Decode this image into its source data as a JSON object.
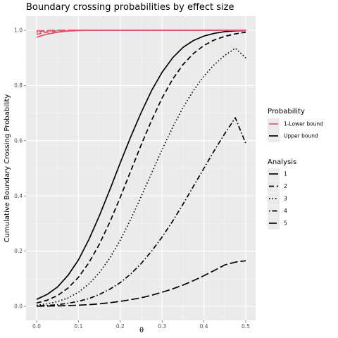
{
  "chart_data": {
    "type": "line",
    "title": "Boundary crossing probabilities by effect size",
    "xlabel": "θ",
    "ylabel": "Cumulative Boundary Crossing Probability",
    "xlim": [
      0,
      0.5
    ],
    "ylim": [
      0,
      1
    ],
    "x_ticks": [
      "0.0",
      "0.1",
      "0.2",
      "0.3",
      "0.4",
      "0.5"
    ],
    "y_ticks": [
      "0.0",
      "0.2",
      "0.4",
      "0.6",
      "0.8",
      "1.0"
    ],
    "grid": true,
    "panel_background": "#ebebeb",
    "legend_position": "right",
    "legend": {
      "probability": {
        "title": "Probability",
        "items": [
          {
            "label": "1-Lower bound",
            "color": "#df536b"
          },
          {
            "label": "Upper bound",
            "color": "#000000"
          }
        ]
      },
      "analysis": {
        "title": "Analysis",
        "items": [
          {
            "label": "1",
            "dash": "solid"
          },
          {
            "label": "2",
            "dash": "dashed"
          },
          {
            "label": "3",
            "dash": "dotted"
          },
          {
            "label": "4",
            "dash": "dotdash"
          },
          {
            "label": "5",
            "dash": "longdash"
          }
        ]
      }
    },
    "x": [
      0,
      0.025,
      0.05,
      0.075,
      0.1,
      0.125,
      0.15,
      0.175,
      0.2,
      0.225,
      0.25,
      0.275,
      0.3,
      0.325,
      0.35,
      0.375,
      0.4,
      0.425,
      0.45,
      0.475,
      0.5
    ],
    "series": [
      {
        "name": "Upper bound",
        "analysis": "1",
        "color": "#000000",
        "dash": "solid",
        "values": [
          0.025,
          0.043,
          0.07,
          0.112,
          0.168,
          0.242,
          0.328,
          0.422,
          0.52,
          0.614,
          0.702,
          0.782,
          0.848,
          0.9,
          0.938,
          0.963,
          0.979,
          0.989,
          0.995,
          0.998,
          0.999
        ]
      },
      {
        "name": "Upper bound",
        "analysis": "2",
        "color": "#000000",
        "dash": "dashed",
        "values": [
          0.012,
          0.022,
          0.039,
          0.066,
          0.105,
          0.158,
          0.225,
          0.305,
          0.395,
          0.49,
          0.585,
          0.674,
          0.755,
          0.822,
          0.876,
          0.916,
          0.945,
          0.965,
          0.978,
          0.987,
          0.993
        ]
      },
      {
        "name": "Upper bound",
        "analysis": "3",
        "color": "#000000",
        "dash": "dotted",
        "values": [
          0.004,
          0.009,
          0.017,
          0.03,
          0.051,
          0.081,
          0.122,
          0.175,
          0.24,
          0.315,
          0.398,
          0.483,
          0.568,
          0.648,
          0.72,
          0.782,
          0.834,
          0.876,
          0.909,
          0.935,
          0.9
        ]
      },
      {
        "name": "Upper bound",
        "analysis": "4",
        "color": "#000000",
        "dash": "dotdash",
        "values": [
          0.002,
          0.003,
          0.006,
          0.011,
          0.018,
          0.028,
          0.043,
          0.062,
          0.086,
          0.117,
          0.155,
          0.2,
          0.251,
          0.308,
          0.37,
          0.435,
          0.5,
          0.565,
          0.626,
          0.683,
          0.59
        ]
      },
      {
        "name": "Upper bound",
        "analysis": "5",
        "color": "#000000",
        "dash": "longdash",
        "values": [
          0.0005,
          0.001,
          0.0015,
          0.0025,
          0.004,
          0.006,
          0.009,
          0.013,
          0.018,
          0.024,
          0.031,
          0.04,
          0.051,
          0.063,
          0.077,
          0.093,
          0.111,
          0.13,
          0.15,
          0.16,
          0.165
        ]
      },
      {
        "name": "1-Lower bound",
        "analysis": "1",
        "color": "#df536b",
        "dash": "solid",
        "values": [
          0.975,
          0.986,
          0.993,
          0.997,
          0.999,
          1,
          1,
          1,
          1,
          1,
          1,
          1,
          1,
          1,
          1,
          1,
          1,
          1,
          1,
          1,
          1
        ]
      },
      {
        "name": "1-Lower bound",
        "analysis": "2",
        "color": "#df536b",
        "dash": "dashed",
        "values": [
          0.985,
          0.993,
          0.997,
          0.999,
          1,
          1,
          1,
          1,
          1,
          1,
          1,
          1,
          1,
          1,
          1,
          1,
          1,
          1,
          1,
          1,
          1
        ]
      },
      {
        "name": "1-Lower bound",
        "analysis": "3",
        "color": "#df536b",
        "dash": "dotted",
        "values": [
          0.991,
          0.996,
          0.999,
          1,
          1,
          1,
          1,
          1,
          1,
          1,
          1,
          1,
          1,
          1,
          1,
          1,
          1,
          1,
          1,
          1,
          1
        ]
      },
      {
        "name": "1-Lower bound",
        "analysis": "4",
        "color": "#df536b",
        "dash": "dotdash",
        "values": [
          0.995,
          0.998,
          1,
          1,
          1,
          1,
          1,
          1,
          1,
          1,
          1,
          1,
          1,
          1,
          1,
          1,
          1,
          1,
          1,
          1,
          1
        ]
      },
      {
        "name": "1-Lower bound",
        "analysis": "5",
        "color": "#df536b",
        "dash": "longdash",
        "values": [
          0.998,
          0.999,
          1,
          1,
          1,
          1,
          1,
          1,
          1,
          1,
          1,
          1,
          1,
          1,
          1,
          1,
          1,
          1,
          1,
          1,
          1
        ]
      }
    ]
  }
}
